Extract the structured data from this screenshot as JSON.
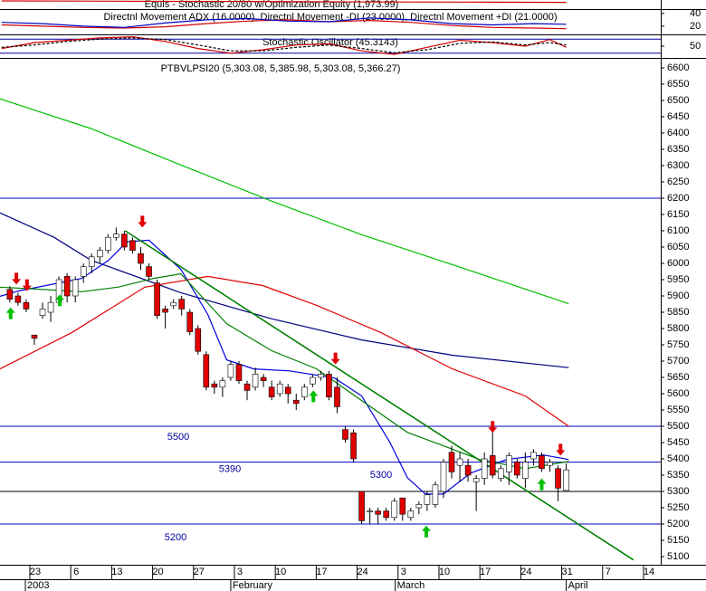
{
  "chart_data": [
    {
      "type": "line",
      "title": "Equis - Stochastic 20/80  w/Optimization Equity (1,973.99)",
      "xlim": [
        -4.2,
        76.55
      ],
      "ylim": [
        1900,
        2000
      ],
      "series": [
        {
          "name": "Equity",
          "color": "#d00000",
          "x": [
            -4,
            6,
            16,
            26,
            36,
            46,
            56,
            65
          ],
          "values": [
            1990,
            1988,
            1985,
            1984,
            1980,
            1978,
            1976,
            1974
          ]
        }
      ]
    },
    {
      "type": "line",
      "title": "Directnl Movement ADX (16.0000), Directnl Movement -DI (23.0000), Directnl Movement +DI (21.0000)",
      "xlim": [
        -4.2,
        76.55
      ],
      "ylim": [
        7,
        47
      ],
      "yticks": [
        40,
        20
      ],
      "series": [
        {
          "name": "ADX",
          "color": "#d00000",
          "x": [
            -4,
            1,
            6,
            11,
            16,
            21,
            26,
            31,
            36,
            41,
            46,
            51,
            56,
            61,
            65
          ],
          "values": [
            22,
            20,
            18,
            17,
            19,
            24,
            28,
            30,
            27,
            29,
            26,
            21,
            18,
            17,
            16
          ]
        },
        {
          "name": "-DI",
          "color": "#0000c0",
          "x": [
            -4,
            1,
            6,
            11,
            16,
            21,
            26,
            31,
            36,
            41,
            46,
            51,
            56,
            61,
            65
          ],
          "values": [
            26,
            24,
            20,
            18,
            25,
            30,
            32,
            28,
            27,
            33,
            30,
            24,
            22,
            24,
            23
          ]
        }
      ]
    },
    {
      "type": "line",
      "title": "Stochastic Oscillator (45.3143)",
      "xlim": [
        -4.2,
        76.55
      ],
      "ylim": [
        0,
        100
      ],
      "yticks": [
        50
      ],
      "levels": [
        80,
        20
      ],
      "series": [
        {
          "name": "%K",
          "color": "#d00000",
          "x": [
            -4,
            0,
            4,
            8,
            12,
            16,
            20,
            24,
            28,
            32,
            36,
            40,
            44,
            48,
            52,
            56,
            60,
            63,
            65
          ],
          "values": [
            40,
            65,
            75,
            85,
            90,
            70,
            40,
            20,
            35,
            55,
            60,
            30,
            15,
            45,
            75,
            65,
            50,
            78,
            45
          ]
        },
        {
          "name": "%D",
          "color": "#000000",
          "x": [
            -4,
            0,
            4,
            8,
            12,
            16,
            20,
            24,
            28,
            32,
            36,
            40,
            44,
            48,
            52,
            56,
            60,
            63,
            65
          ],
          "values": [
            45,
            55,
            70,
            80,
            85,
            78,
            55,
            30,
            30,
            45,
            55,
            40,
            22,
            35,
            62,
            68,
            55,
            65,
            55
          ]
        }
      ]
    },
    {
      "type": "candlestick",
      "title": "PTBVLPSI20 (5,303.08, 5,385.98, 5,303.08, 5,366.27)",
      "xlim": [
        -4.2,
        76.55
      ],
      "ylim": [
        5075,
        6625
      ],
      "yticks": [
        6600,
        6550,
        6500,
        6450,
        6400,
        6350,
        6300,
        6250,
        6200,
        6150,
        6100,
        6050,
        6000,
        5950,
        5900,
        5850,
        5800,
        5750,
        5700,
        5650,
        5600,
        5550,
        5500,
        5450,
        5400,
        5350,
        5300,
        5250,
        5200,
        5150,
        5100
      ],
      "xticks": [
        {
          "value": 0,
          "label": "23"
        },
        {
          "value": 5,
          "label": "6"
        },
        {
          "value": 10,
          "label": "13"
        },
        {
          "value": 15,
          "label": "20"
        },
        {
          "value": 20,
          "label": "27"
        },
        {
          "value": 25,
          "label": "3"
        },
        {
          "value": 30,
          "label": "10"
        },
        {
          "value": 35,
          "label": "17"
        },
        {
          "value": 40,
          "label": "24"
        },
        {
          "value": 45,
          "label": "3"
        },
        {
          "value": 50,
          "label": "10"
        },
        {
          "value": 55,
          "label": "17"
        },
        {
          "value": 60,
          "label": "24"
        },
        {
          "value": 65,
          "label": "31"
        },
        {
          "value": 70,
          "label": "7"
        },
        {
          "value": 75,
          "label": "14"
        }
      ],
      "month_ticks": [
        {
          "value": -1.1,
          "label": "2003"
        },
        {
          "value": 24,
          "label": "February"
        },
        {
          "value": 44.1,
          "label": "March"
        },
        {
          "value": 65,
          "label": "April"
        }
      ],
      "up_color": "#ffffff",
      "down_color": "#e00000",
      "x": [
        -3,
        -2,
        -1,
        0,
        1,
        2,
        3,
        4,
        5,
        6,
        7,
        8,
        9,
        10,
        11,
        12,
        13,
        14,
        15,
        16,
        17,
        18,
        19,
        20,
        21,
        22,
        23,
        24,
        25,
        26,
        27,
        28,
        29,
        30,
        31,
        32,
        33,
        34,
        35,
        36,
        37,
        38,
        39,
        40,
        41,
        42,
        43,
        44,
        45,
        46,
        47,
        48,
        49,
        50,
        51,
        52,
        53,
        54,
        55,
        56,
        57,
        58,
        59,
        60,
        61,
        62,
        63,
        64,
        65
      ],
      "open": [
        5920,
        5900,
        5880,
        5780,
        5840,
        5850,
        5880,
        5960,
        5900,
        5960,
        5990,
        6020,
        6040,
        6080,
        6090,
        6070,
        6030,
        5990,
        5940,
        5860,
        5870,
        5890,
        5850,
        5800,
        5720,
        5630,
        5620,
        5650,
        5690,
        5630,
        5620,
        5650,
        5620,
        5600,
        5620,
        5580,
        5590,
        5630,
        5650,
        5660,
        5620,
        5490,
        5480,
        5300,
        5240,
        5240,
        5240,
        5220,
        5280,
        5220,
        5250,
        5260,
        5260,
        5300,
        5420,
        5380,
        5380,
        5330,
        5340,
        5410,
        5340,
        5360,
        5390,
        5340,
        5400,
        5410,
        5380,
        5370,
        5303.08
      ],
      "high": [
        5930,
        5910,
        5890,
        5780,
        5880,
        5900,
        5960,
        5970,
        5960,
        6000,
        6030,
        6050,
        6090,
        6110,
        6100,
        6080,
        6050,
        6000,
        5950,
        5870,
        5890,
        5900,
        5860,
        5810,
        5730,
        5640,
        5650,
        5700,
        5700,
        5640,
        5680,
        5660,
        5640,
        5640,
        5630,
        5600,
        5630,
        5660,
        5670,
        5670,
        5650,
        5500,
        5490,
        5300,
        5250,
        5250,
        5250,
        5280,
        5280,
        5250,
        5270,
        5300,
        5330,
        5400,
        5440,
        5420,
        5400,
        5350,
        5420,
        5490,
        5380,
        5420,
        5400,
        5420,
        5430,
        5420,
        5400,
        5380,
        5385.98
      ],
      "low": [
        5880,
        5870,
        5850,
        5750,
        5830,
        5820,
        5870,
        5880,
        5880,
        5940,
        5970,
        6000,
        6030,
        6070,
        6040,
        6030,
        5980,
        5950,
        5830,
        5800,
        5860,
        5840,
        5780,
        5720,
        5610,
        5600,
        5590,
        5640,
        5630,
        5580,
        5610,
        5620,
        5580,
        5590,
        5570,
        5550,
        5580,
        5620,
        5640,
        5580,
        5540,
        5450,
        5390,
        5200,
        5200,
        5200,
        5210,
        5210,
        5210,
        5210,
        5230,
        5240,
        5250,
        5280,
        5340,
        5330,
        5330,
        5240,
        5320,
        5340,
        5330,
        5320,
        5340,
        5310,
        5380,
        5360,
        5360,
        5270,
        5303.08
      ],
      "close": [
        5890,
        5880,
        5860,
        5770,
        5860,
        5880,
        5950,
        5900,
        5950,
        5990,
        6020,
        6040,
        6080,
        6090,
        6050,
        6040,
        6000,
        5960,
        5840,
        5850,
        5880,
        5860,
        5790,
        5730,
        5620,
        5620,
        5640,
        5690,
        5640,
        5610,
        5660,
        5640,
        5590,
        5630,
        5600,
        5570,
        5620,
        5650,
        5660,
        5590,
        5560,
        5460,
        5400,
        5210,
        5240,
        5230,
        5220,
        5270,
        5230,
        5240,
        5260,
        5290,
        5320,
        5390,
        5360,
        5400,
        5350,
        5340,
        5400,
        5350,
        5370,
        5410,
        5350,
        5390,
        5420,
        5370,
        5390,
        5310,
        5366.27
      ],
      "moving_averages": [
        {
          "name": "MA long green",
          "color": "#00c000",
          "x": [
            -4.2,
            6.9,
            17.9,
            29,
            40,
            51.1,
            65.3
          ],
          "values": [
            6505,
            6414,
            6302,
            6191,
            6088,
            5996,
            5876
          ]
        },
        {
          "name": "MA long blue",
          "color": "#000080",
          "x": [
            -4.2,
            2.4,
            6.9,
            17.9,
            29,
            40,
            51.1,
            65.3
          ],
          "values": [
            6155,
            6080,
            6010,
            5910,
            5830,
            5765,
            5718,
            5680
          ]
        },
        {
          "name": "MA red",
          "color": "#e00000",
          "x": [
            -4.2,
            4.6,
            13.5,
            21.2,
            27.9,
            34.5,
            42.3,
            51.1,
            60,
            65.3
          ],
          "values": [
            5676,
            5788,
            5927,
            5960,
            5932,
            5871,
            5788,
            5676,
            5593,
            5500
          ]
        },
        {
          "name": "MA short blue",
          "color": "#0000e0",
          "x": [
            -4.2,
            -2,
            5.8,
            9.1,
            11.3,
            14,
            17.9,
            21.2,
            23.5,
            26.8,
            31.2,
            36.7,
            40,
            43.4,
            45.6,
            47.8,
            50,
            53.3,
            57.7,
            62.2,
            65.3
          ],
          "values": [
            5899,
            5915,
            5954,
            6010,
            6066,
            6071,
            5982,
            5843,
            5704,
            5676,
            5670,
            5648,
            5593,
            5453,
            5342,
            5292,
            5292,
            5356,
            5398,
            5412,
            5398
          ]
        },
        {
          "name": "MA short green",
          "color": "#008000",
          "x": [
            -4.2,
            0.2,
            5.8,
            10.2,
            14.6,
            17.9,
            23.5,
            29,
            34.5,
            40,
            45.6,
            50,
            54.4,
            60,
            65.3
          ],
          "values": [
            5927,
            5921,
            5913,
            5927,
            5954,
            5968,
            5815,
            5732,
            5676,
            5579,
            5481,
            5440,
            5398,
            5370,
            5392
          ]
        }
      ],
      "trendline": {
        "color": "#008000",
        "x": [
          11.1,
          73.2
        ],
        "values": [
          6100,
          5090
        ]
      },
      "levels": [
        6200,
        5500,
        5390,
        5300,
        5200
      ],
      "level_color": "#0000c0",
      "signals": [
        {
          "dir": "down",
          "color": "#e00000",
          "x": -2.2,
          "price": 5935
        },
        {
          "dir": "down",
          "color": "#e00000",
          "x": -0.9,
          "price": 5915
        },
        {
          "dir": "down",
          "color": "#e00000",
          "x": 13.2,
          "price": 6110
        },
        {
          "dir": "down",
          "color": "#e00000",
          "x": 36.8,
          "price": 5690
        },
        {
          "dir": "down",
          "color": "#e00000",
          "x": 56,
          "price": 5480
        },
        {
          "dir": "down",
          "color": "#e00000",
          "x": 64.3,
          "price": 5410
        },
        {
          "dir": "up",
          "color": "#00c000",
          "x": -2.9,
          "price": 5865
        },
        {
          "dir": "up",
          "color": "#00c000",
          "x": 3.1,
          "price": 5905
        },
        {
          "dir": "up",
          "color": "#00c000",
          "x": 34.1,
          "price": 5610
        },
        {
          "dir": "up",
          "color": "#00c000",
          "x": 47.9,
          "price": 5195
        },
        {
          "dir": "up",
          "color": "#00c000",
          "x": 62,
          "price": 5340
        }
      ]
    }
  ]
}
